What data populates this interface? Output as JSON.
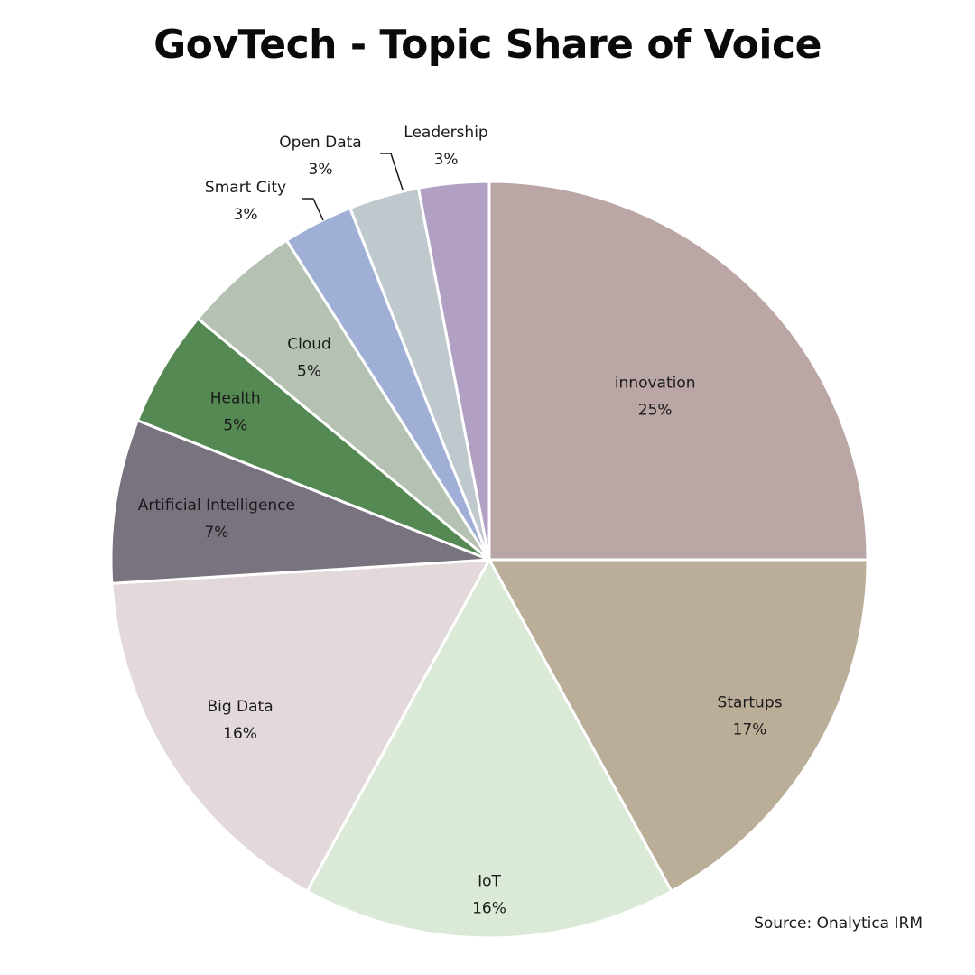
{
  "title": "GovTech - Topic Share of Voice",
  "source": "Source: Onalytica IRM",
  "chart_data": {
    "type": "pie",
    "title": "GovTech - Topic Share of Voice",
    "start_angle_deg": 0,
    "direction": "clockwise",
    "slices": [
      {
        "label": "innovation",
        "value": 25,
        "display": "25%",
        "color": "#baa6a4"
      },
      {
        "label": "Startups",
        "value": 17,
        "display": "17%",
        "color": "#baae98"
      },
      {
        "label": "IoT",
        "value": 16,
        "display": "16%",
        "color": "#daead6"
      },
      {
        "label": "Big Data",
        "value": 16,
        "display": "16%",
        "color": "#e3d9da"
      },
      {
        "label": "Artificial Intelligence",
        "value": 7,
        "display": "7%",
        "color": "#79737f"
      },
      {
        "label": "Health",
        "value": 5,
        "display": "5%",
        "color": "#558953"
      },
      {
        "label": "Cloud",
        "value": 5,
        "display": "5%",
        "color": "#b5c1b3"
      },
      {
        "label": "Smart City",
        "value": 3,
        "display": "3%",
        "color": "#a0afd5"
      },
      {
        "label": "Open Data",
        "value": 3,
        "display": "3%",
        "color": "#bfc8cd"
      },
      {
        "label": "Leadership",
        "value": 3,
        "display": "3%",
        "color": "#b1a0c3"
      }
    ]
  }
}
